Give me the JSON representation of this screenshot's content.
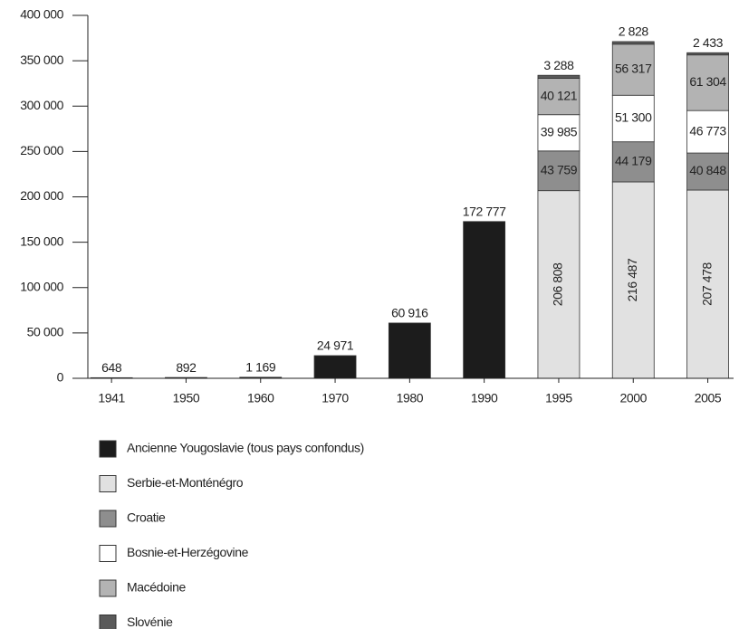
{
  "chart_data": {
    "type": "stacked_bar",
    "categories": [
      "1941",
      "1950",
      "1960",
      "1970",
      "1980",
      "1990",
      "1995",
      "2000",
      "2005"
    ],
    "series": [
      {
        "name": "Ancienne Yougoslavie (tous pays confondus)",
        "color": "#1c1c1c",
        "values": [
          648,
          892,
          1169,
          24971,
          60916,
          172777,
          null,
          null,
          null
        ],
        "value_labels": [
          "648",
          "892",
          "1 169",
          "24 971",
          "60 916",
          "172 777",
          null,
          null,
          null
        ]
      },
      {
        "name": "Serbie-et-Monténégro",
        "color": "#e1e1e1",
        "values": [
          null,
          null,
          null,
          null,
          null,
          null,
          206808,
          216487,
          207478
        ],
        "value_labels": [
          null,
          null,
          null,
          null,
          null,
          null,
          "206 808",
          "216 487",
          "207 478"
        ]
      },
      {
        "name": "Croatie",
        "color": "#8e8e8e",
        "values": [
          null,
          null,
          null,
          null,
          null,
          null,
          43759,
          44179,
          40848
        ],
        "value_labels": [
          null,
          null,
          null,
          null,
          null,
          null,
          "43 759",
          "44 179",
          "40 848"
        ]
      },
      {
        "name": "Bosnie-et-Herzégovine",
        "color": "#ffffff",
        "values": [
          null,
          null,
          null,
          null,
          null,
          null,
          39985,
          51300,
          46773
        ],
        "value_labels": [
          null,
          null,
          null,
          null,
          null,
          null,
          "39 985",
          "51 300",
          "46 773"
        ]
      },
      {
        "name": "Macédoine",
        "color": "#b3b3b3",
        "values": [
          null,
          null,
          null,
          null,
          null,
          null,
          40121,
          56317,
          61304
        ],
        "value_labels": [
          null,
          null,
          null,
          null,
          null,
          null,
          "40 121",
          "56 317",
          "61 304"
        ]
      },
      {
        "name": "Slovénie",
        "color": "#5a5a5a",
        "values": [
          null,
          null,
          null,
          null,
          null,
          null,
          3288,
          2828,
          2433
        ],
        "value_labels": [
          null,
          null,
          null,
          null,
          null,
          null,
          "3 288",
          "2 828",
          "2 433"
        ]
      }
    ],
    "ylim": [
      0,
      400000
    ],
    "yticks": [
      0,
      {
        "value": 50000,
        "label": "50 000"
      },
      {
        "value": 100000,
        "label": "100 000"
      },
      {
        "value": 150000,
        "label": "150 000"
      },
      {
        "value": 200000,
        "label": "200 000"
      },
      {
        "value": 250000,
        "label": "250 000"
      },
      {
        "value": 300000,
        "label": "300 000"
      },
      {
        "value": 350000,
        "label": "350 000"
      },
      {
        "value": 400000,
        "label": "400 000"
      }
    ]
  }
}
